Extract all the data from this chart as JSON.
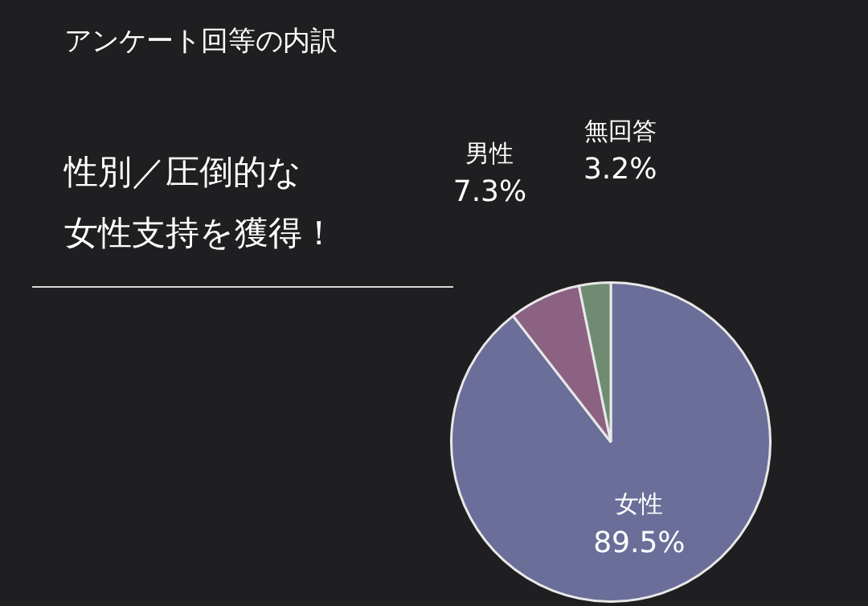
{
  "chart_data": {
    "type": "pie",
    "title": "アンケート回等の内訳",
    "subtitle": "性別／圧倒的な",
    "annotations": [
      "女性支持を獲得！"
    ],
    "categories": [
      "女性",
      "男性",
      "無回答"
    ],
    "values": [
      89.5,
      7.3,
      3.2
    ],
    "colors": [
      "#6a6e98",
      "#8c6283",
      "#6f8c72"
    ],
    "value_labels": [
      "89.5%",
      "7.3%",
      "3.2%"
    ],
    "legend": false
  }
}
